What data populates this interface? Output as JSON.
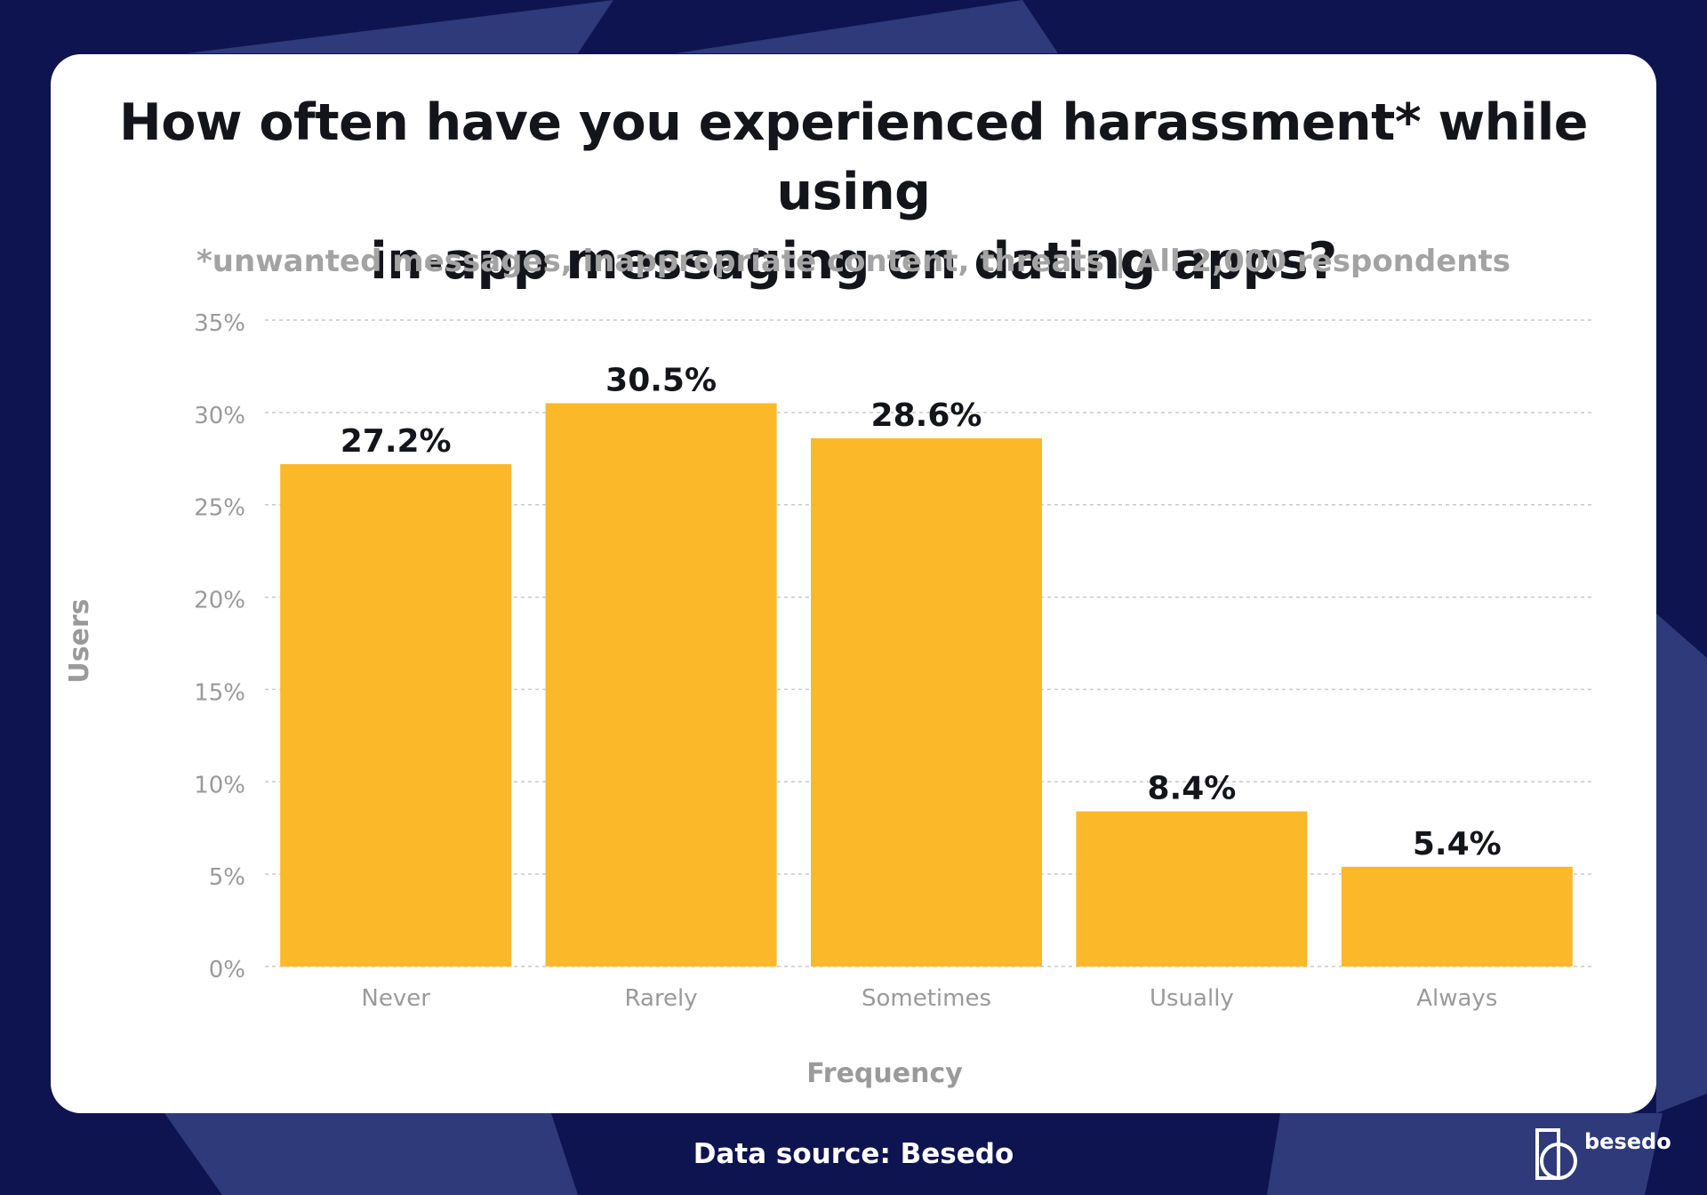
{
  "page": {
    "title_line1": "How often have you experienced harassment* while using",
    "title_line2": "in-app messaging on dating apps?",
    "subtitle": "*unwanted messages, inappropriate content, threats | All 2,000 respondents",
    "footer": "Data source: Besedo",
    "logo_text": "besedo"
  },
  "colors": {
    "background": "#0e1450",
    "card": "#ffffff",
    "bar": "#fbb829",
    "title": "#14151a",
    "muted": "#a3a3a3"
  },
  "chart_data": {
    "type": "bar",
    "categories": [
      "Never",
      "Rarely",
      "Sometimes",
      "Usually",
      "Always"
    ],
    "values": [
      27.2,
      30.5,
      28.6,
      8.4,
      5.4
    ],
    "value_labels": [
      "27.2%",
      "30.5%",
      "28.6%",
      "8.4%",
      "5.4%"
    ],
    "xlabel": "Frequency",
    "ylabel": "Users",
    "ylim": [
      0,
      35
    ],
    "yticks": [
      0,
      5,
      10,
      15,
      20,
      25,
      30,
      35
    ],
    "ytick_labels": [
      "0%",
      "5%",
      "10%",
      "15%",
      "20%",
      "25%",
      "30%",
      "35%"
    ],
    "grid": true
  }
}
